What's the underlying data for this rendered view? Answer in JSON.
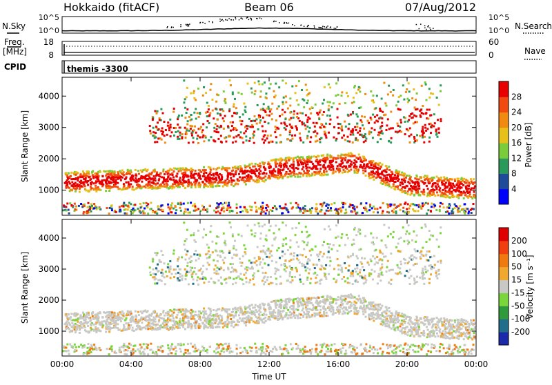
{
  "header": {
    "station": "Hokkaido (fitACF)",
    "beam": "Beam 06",
    "date": "07/Aug/2012"
  },
  "sky_panel": {
    "left_label": "N.Sky",
    "right_label": "N.Search",
    "left_ticks": [
      "10^5",
      "10^0"
    ],
    "right_ticks": [
      "10^5",
      "10^0"
    ]
  },
  "freq_panel": {
    "label_line1": "Freq.",
    "label_line2": "[MHz]",
    "left_ticks": [
      "18",
      "8"
    ],
    "right_ticks": [
      "60",
      "0"
    ],
    "right_label": "Nave"
  },
  "cpid_panel": {
    "label": "CPID",
    "program": "themis -3300"
  },
  "chart_data": [
    {
      "type": "heatmap",
      "name": "power",
      "ylabel": "Slant Range [km]",
      "yticks": [
        1000,
        2000,
        3000,
        4000
      ],
      "ylim": [
        200,
        4600
      ],
      "x_ticks": [
        "00:00",
        "04:00",
        "08:00",
        "12:00",
        "16:00",
        "20:00",
        "00:00"
      ],
      "xlim_hours": [
        0,
        24
      ],
      "colorbar": {
        "label": "Power [dB]",
        "ticks": [
          "4",
          "8",
          "12",
          "16",
          "20",
          "24",
          "28"
        ],
        "colors": [
          "#0000ff",
          "#1e4b9a",
          "#2a9a5a",
          "#7acc3a",
          "#e8c01a",
          "#f08a10",
          "#f04a10",
          "#e80000"
        ]
      }
    },
    {
      "type": "heatmap",
      "name": "velocity",
      "ylabel": "Slant Range [km]",
      "yticks": [
        1000,
        2000,
        3000,
        4000
      ],
      "ylim": [
        200,
        4600
      ],
      "x_ticks": [
        "00:00",
        "04:00",
        "08:00",
        "12:00",
        "16:00",
        "20:00",
        "00:00"
      ],
      "xlim_hours": [
        0,
        24
      ],
      "xlabel": "Time UT",
      "colorbar": {
        "label": "Velocity [m s⁻¹]",
        "ticks": [
          "200",
          "100",
          "50",
          "15",
          "-15",
          "-50",
          "-100",
          "-200"
        ],
        "colors": [
          "#1a2aa8",
          "#1f6e8a",
          "#2e9a3c",
          "#7ad63a",
          "#c8c8c4",
          "#f0a830",
          "#f07a10",
          "#f04010",
          "#e00000"
        ]
      }
    }
  ]
}
